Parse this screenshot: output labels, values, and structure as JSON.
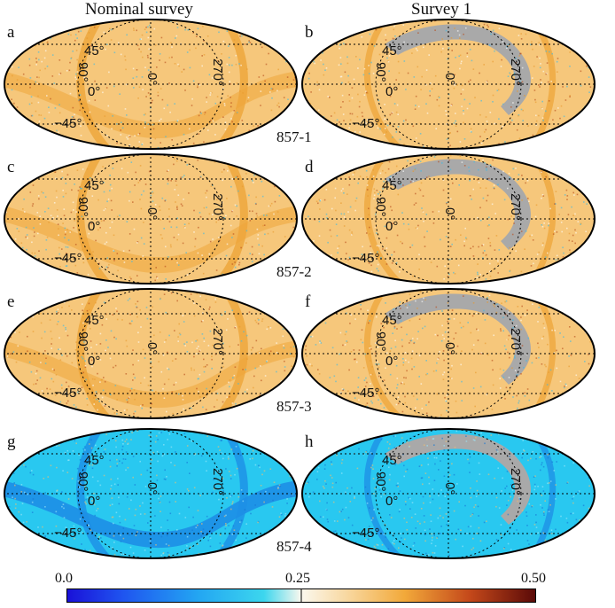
{
  "columns": [
    "Nominal survey",
    "Survey 1"
  ],
  "panels": [
    "a",
    "b",
    "c",
    "d",
    "e",
    "f",
    "g",
    "h"
  ],
  "detectors": [
    "857-1",
    "857-2",
    "857-3",
    "857-4"
  ],
  "grid_labels": {
    "lat_n": "45°",
    "lat_s": "−45°",
    "lat_0": "0°",
    "lon_90": "90°",
    "lon_0": "0°",
    "lon_270": "270°"
  },
  "colorbar": {
    "min": "0.0",
    "mid": "0.25",
    "max": "0.50"
  },
  "colors": {
    "orange_base": "#f6c77b",
    "orange_band": "#eea53a",
    "blue_base": "#29c8f0",
    "blue_band": "#1d8ee6",
    "gap": "#a9a9a9"
  }
}
